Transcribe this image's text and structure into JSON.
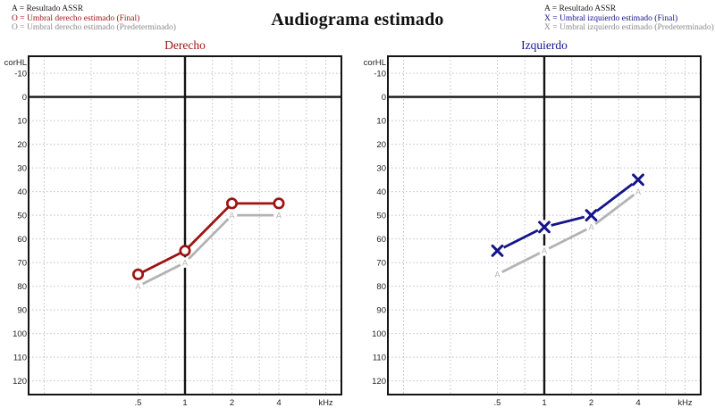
{
  "title": "Audiograma estimado",
  "legend_left": {
    "items": [
      {
        "symbol": "A",
        "label": "A = Resultado ASSR",
        "color": "#1A1A1A"
      },
      {
        "symbol": "O",
        "label": "O = Umbral derecho estimado (Final)",
        "color": "#9E1212"
      },
      {
        "symbol": "O",
        "label": "O = Umbral derecho estimado (Predeterminado)",
        "color": "#8A8A8A"
      }
    ]
  },
  "legend_right": {
    "items": [
      {
        "symbol": "A",
        "label": "A = Resultado ASSR",
        "color": "#1A1A1A"
      },
      {
        "symbol": "X",
        "label": "X = Umbral izquierdo estimado (Final)",
        "color": "#14148C"
      },
      {
        "symbol": "X",
        "label": "X = Umbral izquierdo estimado (Predeterminado)",
        "color": "#8A8A8A"
      }
    ]
  },
  "chart_data": [
    {
      "type": "line",
      "title": "Derecho",
      "title_color": "#9E1212",
      "ylabel": "corHL",
      "x_unit": "kHz",
      "x": [
        0.5,
        1,
        2,
        4
      ],
      "x_tick_labels": [
        ".5",
        "1",
        "2",
        "4"
      ],
      "y_ticks": [
        -10,
        0,
        10,
        20,
        30,
        40,
        50,
        60,
        70,
        80,
        90,
        100,
        110,
        120
      ],
      "ylim": [
        -10,
        120
      ],
      "xscale": "log2",
      "x_gridlines_minor": [
        0.125,
        0.25,
        0.5,
        0.75,
        1.5,
        2,
        3,
        4,
        6,
        8
      ],
      "grid": true,
      "series": [
        {
          "name": "Resultado ASSR",
          "marker": "A",
          "color": "#B3B3B3",
          "values": [
            80,
            70,
            50,
            50
          ]
        },
        {
          "name": "Umbral derecho estimado (Final)",
          "marker": "O",
          "color": "#9E1212",
          "values": [
            75,
            65,
            45,
            45
          ]
        }
      ]
    },
    {
      "type": "line",
      "title": "Izquierdo",
      "title_color": "#14148C",
      "ylabel": "corHL",
      "x_unit": "kHz",
      "x": [
        0.5,
        1,
        2,
        4
      ],
      "x_tick_labels": [
        ".5",
        "1",
        "2",
        "4"
      ],
      "y_ticks": [
        -10,
        0,
        10,
        20,
        30,
        40,
        50,
        60,
        70,
        80,
        90,
        100,
        110,
        120
      ],
      "ylim": [
        -10,
        120
      ],
      "xscale": "log2",
      "x_gridlines_minor": [
        0.125,
        0.25,
        0.5,
        0.75,
        1.5,
        2,
        3,
        4,
        6,
        8
      ],
      "grid": true,
      "series": [
        {
          "name": "Resultado ASSR",
          "marker": "A",
          "color": "#B3B3B3",
          "values": [
            75,
            65,
            55,
            40
          ]
        },
        {
          "name": "Umbral izquierdo estimado (Final)",
          "marker": "X",
          "color": "#14148C",
          "values": [
            65,
            55,
            50,
            35
          ]
        }
      ]
    }
  ],
  "style_colors": {
    "grid": "#C5C5C5",
    "axis": "#141414",
    "tick_text": "#222222"
  }
}
